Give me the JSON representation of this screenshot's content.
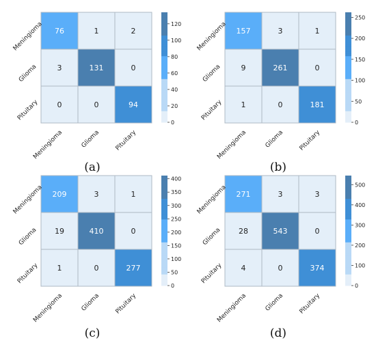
{
  "figure": {
    "colors": {
      "bright": "#5aaef9",
      "mid": "#3f8fd6",
      "dark": "#4a7faf",
      "light_bucket": "#b9d9f6",
      "very_light": "#e4eff9",
      "grid_line": "#aeb9c4",
      "text_dark": "#222222",
      "text_light": "#ffffff"
    }
  },
  "chart_data": [
    {
      "type": "heatmap",
      "panel_label": "(a)",
      "x_tick_labels": [
        "Meningioma",
        "Glioma",
        "Pituitary"
      ],
      "y_tick_labels": [
        "Meningioma",
        "Glioma",
        "Pituitary"
      ],
      "values": [
        [
          76,
          1,
          2
        ],
        [
          3,
          131,
          0
        ],
        [
          0,
          0,
          94
        ]
      ],
      "colorbar_ticks": [
        0,
        20,
        40,
        60,
        80,
        100,
        120
      ],
      "colorbar_max": 134
    },
    {
      "type": "heatmap",
      "panel_label": "(b)",
      "x_tick_labels": [
        "Meningioma",
        "Glioma",
        "Pituitary"
      ],
      "y_tick_labels": [
        "Meningioma",
        "Glioma",
        "Pituitary"
      ],
      "values": [
        [
          157,
          3,
          1
        ],
        [
          9,
          261,
          0
        ],
        [
          1,
          0,
          181
        ]
      ],
      "colorbar_ticks": [
        0,
        50,
        100,
        150,
        200,
        250
      ],
      "colorbar_max": 262
    },
    {
      "type": "heatmap",
      "panel_label": "(c)",
      "x_tick_labels": [
        "Meningioma",
        "Glioma",
        "Pituitary"
      ],
      "y_tick_labels": [
        "Meningioma",
        "Glioma",
        "Pituitary"
      ],
      "values": [
        [
          209,
          3,
          1
        ],
        [
          19,
          410,
          0
        ],
        [
          1,
          0,
          277
        ]
      ],
      "colorbar_ticks": [
        0,
        50,
        100,
        150,
        200,
        250,
        300,
        350,
        400
      ],
      "colorbar_max": 412
    },
    {
      "type": "heatmap",
      "panel_label": "(d)",
      "x_tick_labels": [
        "Meningioma",
        "Glioma",
        "Pituitary"
      ],
      "y_tick_labels": [
        "Meningioma",
        "Glioma",
        "Pituitary"
      ],
      "values": [
        [
          271,
          3,
          3
        ],
        [
          28,
          543,
          0
        ],
        [
          4,
          0,
          374
        ]
      ],
      "colorbar_ticks": [
        0,
        100,
        200,
        300,
        400,
        500
      ],
      "colorbar_max": 545
    }
  ]
}
